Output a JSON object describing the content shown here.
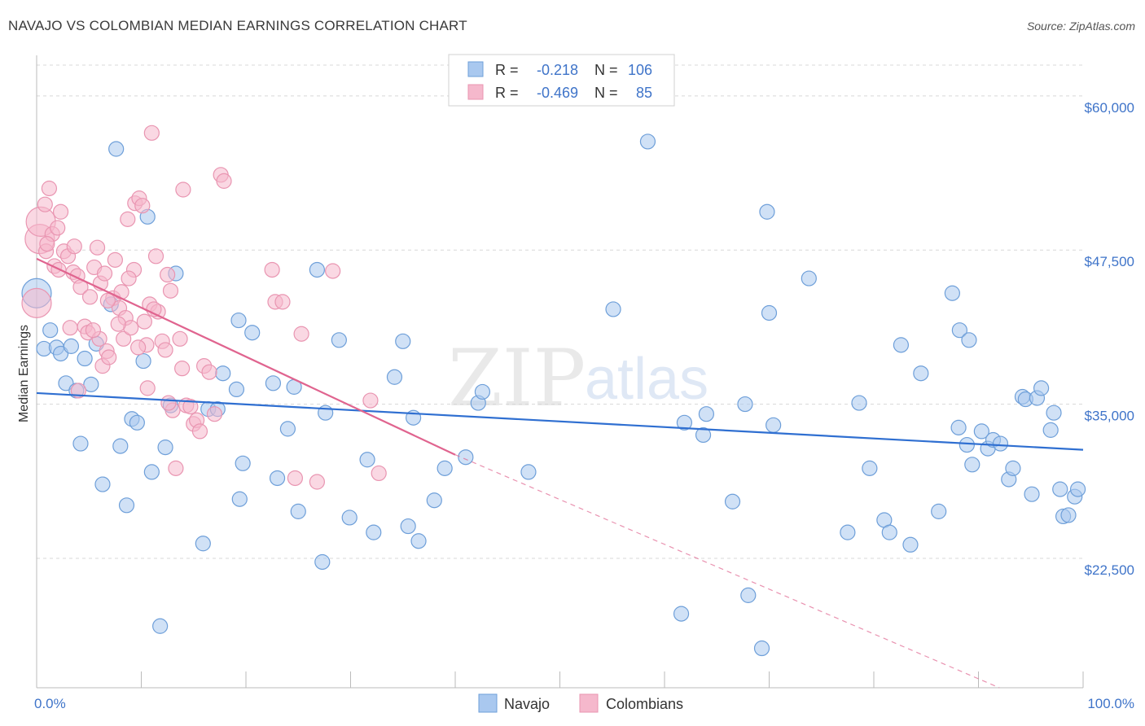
{
  "title": "NAVAJO VS COLOMBIAN MEDIAN EARNINGS CORRELATION CHART",
  "source": "Source: ZipAtlas.com",
  "watermark": {
    "zip": "ZIP",
    "atlas": "atlas"
  },
  "colors": {
    "navajo_fill": "#a9c8ef",
    "navajo_stroke": "#6e9fd9",
    "navajo_line": "#2f6fd1",
    "colombian_fill": "#f5b8cc",
    "colombian_stroke": "#e995b1",
    "colombian_line": "#e0648f",
    "tick_color": "#3f74c9",
    "grid": "#d8d8d8"
  },
  "legend": {
    "rows": [
      {
        "r_label": "R =",
        "r_value": "-0.218",
        "n_label": "N =",
        "n_value": "106"
      },
      {
        "r_label": "R =",
        "r_value": "-0.469",
        "n_label": "N =",
        "n_value": "85"
      }
    ],
    "bottom": [
      "Navajo",
      "Colombians"
    ]
  },
  "chart_data": {
    "type": "scatter",
    "title": "NAVAJO VS COLOMBIAN MEDIAN EARNINGS CORRELATION CHART",
    "xlabel": "",
    "ylabel": "Median Earnings",
    "xlim": [
      0,
      100
    ],
    "ylim": [
      12000,
      62500
    ],
    "x_tick_labels": [
      "0.0%",
      "100.0%"
    ],
    "y_ticks": [
      22500,
      35000,
      47500,
      60000
    ],
    "y_tick_labels": [
      "$22,500",
      "$35,000",
      "$47,500",
      "$60,000"
    ],
    "series": [
      {
        "name": "Navajo",
        "r": -0.218,
        "n": 106,
        "trend": {
          "x": [
            0,
            100
          ],
          "y": [
            35900,
            31300
          ]
        },
        "points": [
          [
            0,
            44000
          ],
          [
            0.7,
            39500
          ],
          [
            1.3,
            41000
          ],
          [
            1.9,
            39600
          ],
          [
            2.3,
            39100
          ],
          [
            2.8,
            36700
          ],
          [
            3.3,
            39700
          ],
          [
            3.8,
            36100
          ],
          [
            4.2,
            31800
          ],
          [
            4.6,
            38700
          ],
          [
            5.2,
            36600
          ],
          [
            5.7,
            39900
          ],
          [
            6.3,
            28500
          ],
          [
            7.1,
            43100
          ],
          [
            7.6,
            55700
          ],
          [
            8.0,
            31600
          ],
          [
            8.6,
            26800
          ],
          [
            9.1,
            33800
          ],
          [
            9.6,
            33500
          ],
          [
            10.2,
            38500
          ],
          [
            10.6,
            50200
          ],
          [
            11.0,
            29500
          ],
          [
            11.8,
            17000
          ],
          [
            12.3,
            31500
          ],
          [
            12.8,
            34900
          ],
          [
            13.3,
            45600
          ],
          [
            15.9,
            23700
          ],
          [
            16.4,
            34600
          ],
          [
            17.3,
            34600
          ],
          [
            17.8,
            37500
          ],
          [
            19.1,
            36200
          ],
          [
            19.3,
            41800
          ],
          [
            19.4,
            27300
          ],
          [
            19.7,
            30200
          ],
          [
            20.6,
            40800
          ],
          [
            22.6,
            36700
          ],
          [
            23.0,
            29000
          ],
          [
            24.0,
            33000
          ],
          [
            24.6,
            36400
          ],
          [
            25.0,
            26300
          ],
          [
            26.8,
            45900
          ],
          [
            27.3,
            22200
          ],
          [
            27.6,
            34300
          ],
          [
            28.9,
            40200
          ],
          [
            29.9,
            25800
          ],
          [
            31.6,
            30500
          ],
          [
            32.2,
            24600
          ],
          [
            34.2,
            37200
          ],
          [
            35.0,
            40100
          ],
          [
            35.5,
            25100
          ],
          [
            36.0,
            33900
          ],
          [
            36.5,
            23900
          ],
          [
            38.0,
            27200
          ],
          [
            39.0,
            29800
          ],
          [
            41.0,
            30700
          ],
          [
            42.2,
            35100
          ],
          [
            42.6,
            36000
          ],
          [
            47.0,
            29500
          ],
          [
            55.1,
            42700
          ],
          [
            58.4,
            56300
          ],
          [
            61.6,
            18000
          ],
          [
            61.9,
            33500
          ],
          [
            63.7,
            32500
          ],
          [
            64.0,
            34200
          ],
          [
            66.5,
            27100
          ],
          [
            67.7,
            35000
          ],
          [
            68.0,
            19500
          ],
          [
            69.3,
            15200
          ],
          [
            69.8,
            50600
          ],
          [
            70.0,
            42400
          ],
          [
            70.4,
            33300
          ],
          [
            73.8,
            45200
          ],
          [
            77.5,
            24600
          ],
          [
            78.6,
            35100
          ],
          [
            79.6,
            29800
          ],
          [
            81.0,
            25600
          ],
          [
            81.5,
            24600
          ],
          [
            82.6,
            39800
          ],
          [
            83.5,
            23600
          ],
          [
            84.5,
            37500
          ],
          [
            86.2,
            26300
          ],
          [
            87.5,
            44000
          ],
          [
            88.1,
            33100
          ],
          [
            88.2,
            41000
          ],
          [
            88.9,
            31700
          ],
          [
            89.1,
            40200
          ],
          [
            89.4,
            30100
          ],
          [
            90.3,
            32800
          ],
          [
            90.9,
            31400
          ],
          [
            91.4,
            32100
          ],
          [
            92.1,
            31800
          ],
          [
            92.9,
            28900
          ],
          [
            93.3,
            29800
          ],
          [
            94.2,
            35600
          ],
          [
            94.5,
            35400
          ],
          [
            95.1,
            27700
          ],
          [
            95.6,
            35500
          ],
          [
            96.0,
            36300
          ],
          [
            96.9,
            32900
          ],
          [
            97.2,
            34300
          ],
          [
            97.8,
            28100
          ],
          [
            98.1,
            25900
          ],
          [
            98.6,
            26000
          ],
          [
            99.2,
            27500
          ],
          [
            99.5,
            28100
          ]
        ]
      },
      {
        "name": "Colombians",
        "r": -0.469,
        "n": 85,
        "trend": {
          "x": [
            0,
            40
          ],
          "y": [
            46800,
            30900
          ]
        },
        "trend_dashed": {
          "x": [
            40,
            92
          ],
          "y": [
            30900,
            12000
          ]
        },
        "points": [
          [
            0,
            43200
          ],
          [
            0.3,
            48400
          ],
          [
            0.4,
            49800
          ],
          [
            0.8,
            51200
          ],
          [
            0.9,
            47400
          ],
          [
            1.2,
            52500
          ],
          [
            1.5,
            48800
          ],
          [
            1.7,
            46200
          ],
          [
            2.0,
            49300
          ],
          [
            2.3,
            50600
          ],
          [
            2.6,
            47400
          ],
          [
            3.0,
            47000
          ],
          [
            3.5,
            45700
          ],
          [
            3.6,
            47800
          ],
          [
            3.9,
            45400
          ],
          [
            4.2,
            44500
          ],
          [
            4.6,
            41300
          ],
          [
            4.9,
            40800
          ],
          [
            5.1,
            43700
          ],
          [
            5.5,
            46100
          ],
          [
            5.8,
            47700
          ],
          [
            6.0,
            40300
          ],
          [
            6.1,
            44800
          ],
          [
            6.3,
            38100
          ],
          [
            6.5,
            45600
          ],
          [
            6.7,
            39300
          ],
          [
            6.9,
            38800
          ],
          [
            7.3,
            43600
          ],
          [
            7.5,
            46700
          ],
          [
            7.9,
            42800
          ],
          [
            8.1,
            44100
          ],
          [
            8.3,
            40300
          ],
          [
            8.5,
            42000
          ],
          [
            8.7,
            50000
          ],
          [
            9.0,
            41200
          ],
          [
            9.3,
            45900
          ],
          [
            9.4,
            51300
          ],
          [
            9.8,
            51700
          ],
          [
            10.1,
            51100
          ],
          [
            10.3,
            41700
          ],
          [
            10.5,
            39800
          ],
          [
            10.8,
            43100
          ],
          [
            11.0,
            57000
          ],
          [
            11.4,
            47000
          ],
          [
            11.6,
            42500
          ],
          [
            12.0,
            40100
          ],
          [
            12.3,
            39400
          ],
          [
            12.5,
            45500
          ],
          [
            12.8,
            44200
          ],
          [
            13.0,
            34500
          ],
          [
            13.3,
            29800
          ],
          [
            13.7,
            40300
          ],
          [
            14.0,
            52400
          ],
          [
            14.3,
            34900
          ],
          [
            14.7,
            34800
          ],
          [
            15.0,
            33400
          ],
          [
            15.3,
            33700
          ],
          [
            15.6,
            32800
          ],
          [
            16.0,
            38100
          ],
          [
            16.5,
            37600
          ],
          [
            17.0,
            34200
          ],
          [
            17.6,
            53600
          ],
          [
            17.9,
            53100
          ],
          [
            22.5,
            45900
          ],
          [
            22.8,
            43300
          ],
          [
            23.5,
            43300
          ],
          [
            24.7,
            29000
          ],
          [
            25.3,
            40700
          ],
          [
            26.8,
            28700
          ],
          [
            28.3,
            45800
          ],
          [
            31.9,
            35300
          ],
          [
            32.7,
            29400
          ],
          [
            7.8,
            41500
          ],
          [
            9.7,
            39600
          ],
          [
            11.2,
            42700
          ],
          [
            4.0,
            36100
          ],
          [
            3.2,
            41200
          ],
          [
            2.1,
            45900
          ],
          [
            5.4,
            41000
          ],
          [
            8.8,
            45200
          ],
          [
            12.6,
            35100
          ],
          [
            6.8,
            43400
          ],
          [
            10.6,
            36300
          ],
          [
            1.0,
            48000
          ],
          [
            13.9,
            37900
          ]
        ]
      }
    ]
  }
}
